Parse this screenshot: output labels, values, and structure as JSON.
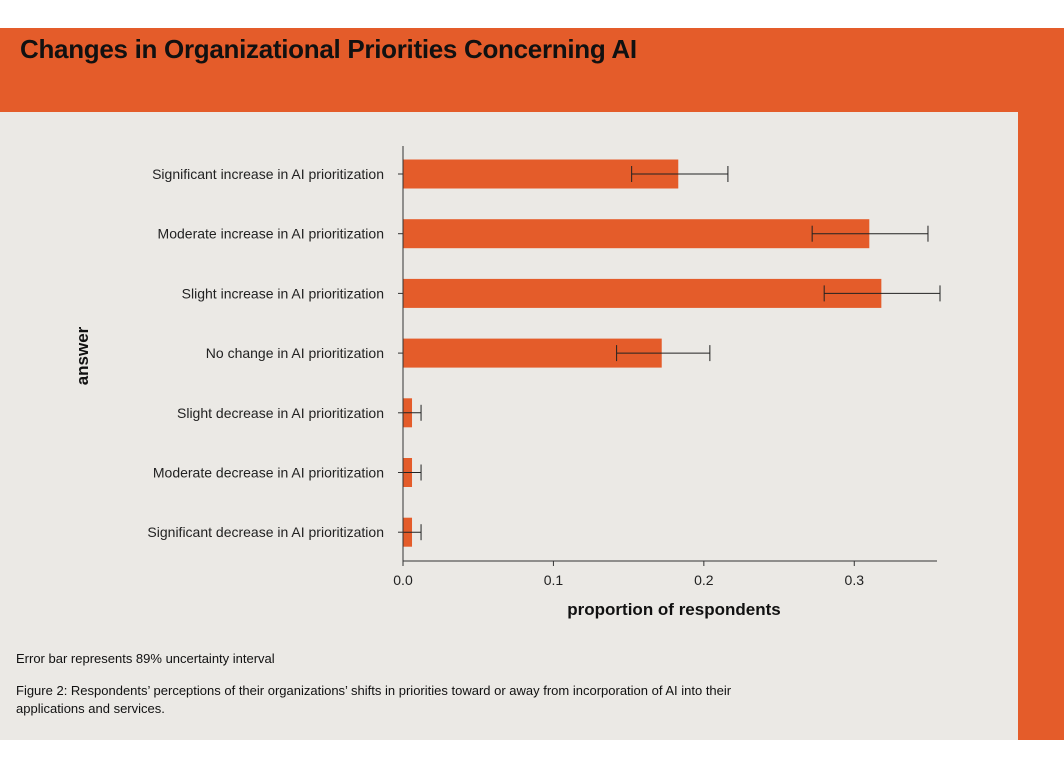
{
  "header": {
    "title": "Changes in Organizational Priorities Concerning AI"
  },
  "footer": {
    "note": "Error bar represents 89% uncertainty interval",
    "caption": "Figure 2: Respondents’ perceptions of their organizations’ shifts in priorities toward or away from incorporation of AI into their applications and services."
  },
  "colors": {
    "accent": "#e45c2a",
    "panel": "#ebe9e5",
    "bar": "#e45c2a",
    "errorbar": "#222222"
  },
  "chart_data": {
    "type": "bar",
    "orientation": "horizontal",
    "title": "",
    "xlabel": "proportion of respondents",
    "ylabel": "answer",
    "xlim": [
      0,
      0.355
    ],
    "xticks": [
      0.0,
      0.1,
      0.2,
      0.3
    ],
    "xtick_labels": [
      "0.0",
      "0.1",
      "0.2",
      "0.3"
    ],
    "grid": false,
    "categories": [
      "Significant increase in AI prioritization",
      "Moderate increase in AI prioritization",
      "Slight increase in AI prioritization",
      "No change in AI prioritization",
      "Slight decrease in AI prioritization",
      "Moderate decrease in AI prioritization",
      "Significant decrease in AI prioritization"
    ],
    "values": [
      0.183,
      0.31,
      0.318,
      0.172,
      0.006,
      0.006,
      0.006
    ],
    "error_low": [
      0.152,
      0.272,
      0.28,
      0.142,
      0.0,
      0.0,
      0.0
    ],
    "error_high": [
      0.216,
      0.349,
      0.357,
      0.204,
      0.012,
      0.012,
      0.012
    ]
  }
}
